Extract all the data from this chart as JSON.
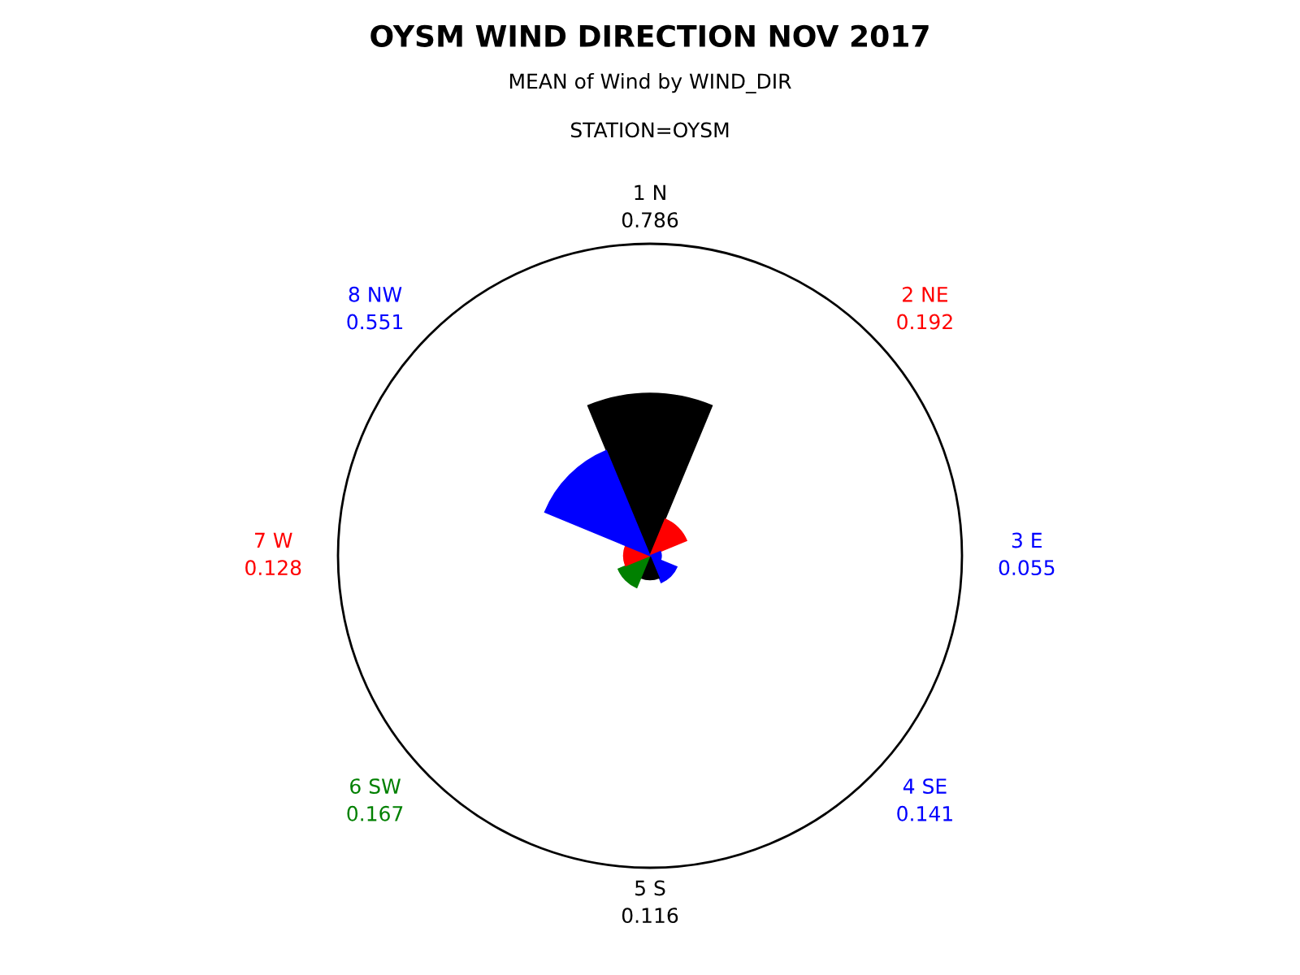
{
  "chart_data": {
    "type": "other",
    "title": "OYSM WIND DIRECTION NOV 2017",
    "subtitle": "MEAN of Wind by WIND_DIR",
    "annotations": [
      "STATION=OYSM"
    ],
    "categories": [
      "1 N",
      "2 NE",
      "3 E",
      "4 SE",
      "5 S",
      "6 SW",
      "7 W",
      "8 NW"
    ],
    "values": [
      0.786,
      0.192,
      0.055,
      0.141,
      0.116,
      0.167,
      0.128,
      0.551
    ],
    "colors": [
      "#000000",
      "#ff0000",
      "#0000ff",
      "#0000ff",
      "#000000",
      "#008000",
      "#ff0000",
      "#0000ff"
    ],
    "data_labels": true
  }
}
